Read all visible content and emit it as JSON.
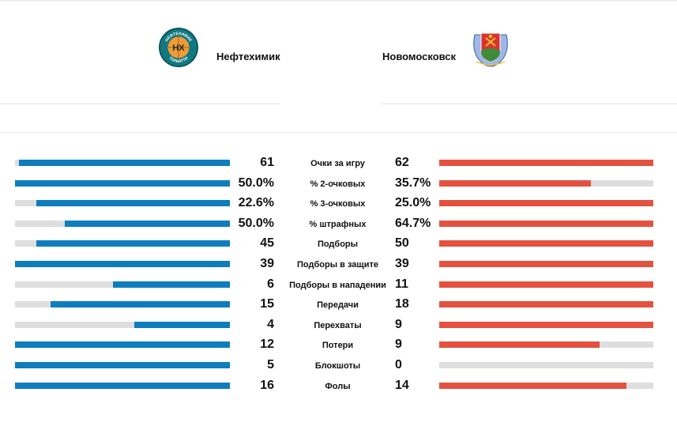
{
  "home": {
    "name": "Нефтехимик",
    "logo_text_top": "НЕФТЕХИМИК",
    "logo_text_bottom": "ТОЛЬЯТТИ",
    "logo_mark": "НХ",
    "color": "#0e7dbd"
  },
  "away": {
    "name": "Новомосковск",
    "color": "#e4513f",
    "logo": "city-coat-of-arms"
  },
  "stats": [
    {
      "label": "Очки за игру",
      "home": "61",
      "away": "62",
      "home_ratio": 0.98,
      "away_ratio": 1.0
    },
    {
      "label": "% 2-очковых",
      "home": "50.0%",
      "away": "35.7%",
      "home_ratio": 1.0,
      "away_ratio": 0.71
    },
    {
      "label": "% 3-очковых",
      "home": "22.6%",
      "away": "25.0%",
      "home_ratio": 0.9,
      "away_ratio": 1.0
    },
    {
      "label": "% штрафных",
      "home": "50.0%",
      "away": "64.7%",
      "home_ratio": 0.77,
      "away_ratio": 1.0
    },
    {
      "label": "Подборы",
      "home": "45",
      "away": "50",
      "home_ratio": 0.9,
      "away_ratio": 1.0
    },
    {
      "label": "Подборы в защите",
      "home": "39",
      "away": "39",
      "home_ratio": 1.0,
      "away_ratio": 1.0
    },
    {
      "label": "Подборы в нападении",
      "home": "6",
      "away": "11",
      "home_ratio": 0.545,
      "away_ratio": 1.0
    },
    {
      "label": "Передачи",
      "home": "15",
      "away": "18",
      "home_ratio": 0.833,
      "away_ratio": 1.0
    },
    {
      "label": "Перехваты",
      "home": "4",
      "away": "9",
      "home_ratio": 0.444,
      "away_ratio": 1.0
    },
    {
      "label": "Потери",
      "home": "12",
      "away": "9",
      "home_ratio": 1.0,
      "away_ratio": 0.75
    },
    {
      "label": "Блокшоты",
      "home": "5",
      "away": "0",
      "home_ratio": 1.0,
      "away_ratio": 0.0
    },
    {
      "label": "Фолы",
      "home": "16",
      "away": "14",
      "home_ratio": 1.0,
      "away_ratio": 0.875
    }
  ]
}
